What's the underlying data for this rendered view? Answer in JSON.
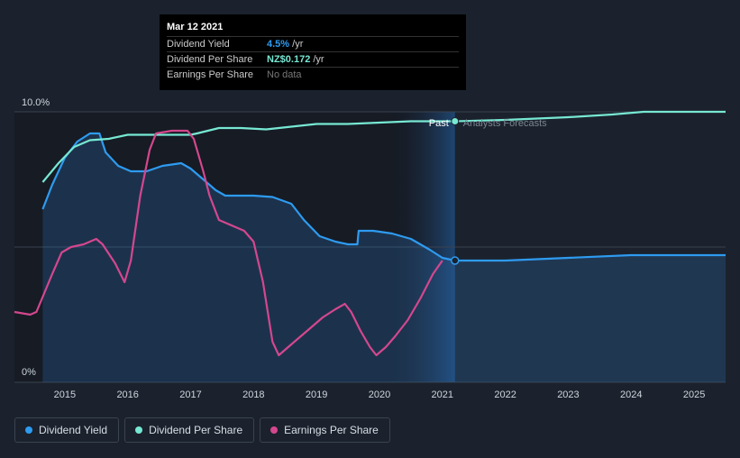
{
  "tooltip": {
    "date": "Mar 12 2021",
    "rows": [
      {
        "label": "Dividend Yield",
        "value": "4.5%",
        "unit": " /yr"
      },
      {
        "label": "Dividend Per Share",
        "value": "NZ$0.172",
        "unit": " /yr"
      },
      {
        "label": "Earnings Per Share",
        "value": "No data",
        "unit": ""
      }
    ]
  },
  "colors": {
    "background": "#1b222d",
    "past_region": "#161b24",
    "dividend_yield": "#2e9bf0",
    "dividend_per_share": "#77e8d3",
    "earnings_per_share": "#d4478e"
  },
  "legend": [
    {
      "label": "Dividend Yield",
      "color": "#2e9bf0"
    },
    {
      "label": "Dividend Per Share",
      "color": "#77e8d3"
    },
    {
      "label": "Earnings Per Share",
      "color": "#d4478e"
    }
  ],
  "chart_data": {
    "type": "line",
    "title": "",
    "xlabel": "",
    "ylabel": "",
    "xlim": [
      2014.2,
      2025.5
    ],
    "ylim": [
      0,
      10
    ],
    "y_tick_labels": [
      {
        "value": 10,
        "label": "10.0%"
      },
      {
        "value": 0,
        "label": "0%"
      }
    ],
    "gridlines": [
      10,
      5
    ],
    "x_ticks": [
      2015,
      2016,
      2017,
      2018,
      2019,
      2020,
      2021,
      2022,
      2023,
      2024,
      2025
    ],
    "x_tick_labels": [
      "2015",
      "2016",
      "2017",
      "2018",
      "2019",
      "2020",
      "2021",
      "2022",
      "2023",
      "2024",
      "2025"
    ],
    "divider_x": 2021.2,
    "divider_labels": {
      "past": "Past",
      "forecast": "Analysts Forecasts"
    },
    "series": [
      {
        "name": "Dividend Yield",
        "color": "#2e9bf0",
        "filled": true,
        "points": [
          [
            2014.65,
            6.4
          ],
          [
            2014.8,
            7.3
          ],
          [
            2015.0,
            8.3
          ],
          [
            2015.2,
            8.9
          ],
          [
            2015.4,
            9.2
          ],
          [
            2015.55,
            9.2
          ],
          [
            2015.65,
            8.5
          ],
          [
            2015.85,
            8.0
          ],
          [
            2016.05,
            7.8
          ],
          [
            2016.3,
            7.8
          ],
          [
            2016.55,
            8.0
          ],
          [
            2016.85,
            8.1
          ],
          [
            2017.0,
            7.9
          ],
          [
            2017.2,
            7.5
          ],
          [
            2017.4,
            7.1
          ],
          [
            2017.55,
            6.9
          ],
          [
            2017.8,
            6.9
          ],
          [
            2018.0,
            6.9
          ],
          [
            2018.3,
            6.85
          ],
          [
            2018.6,
            6.6
          ],
          [
            2018.8,
            6.0
          ],
          [
            2019.05,
            5.4
          ],
          [
            2019.3,
            5.2
          ],
          [
            2019.5,
            5.1
          ],
          [
            2019.65,
            5.1
          ],
          [
            2019.67,
            5.6
          ],
          [
            2019.9,
            5.6
          ],
          [
            2020.2,
            5.5
          ],
          [
            2020.5,
            5.3
          ],
          [
            2020.8,
            4.9
          ],
          [
            2021.0,
            4.6
          ],
          [
            2021.2,
            4.5
          ],
          [
            2022.0,
            4.5
          ],
          [
            2023.0,
            4.6
          ],
          [
            2024.0,
            4.7
          ],
          [
            2024.5,
            4.7
          ],
          [
            2025.5,
            4.7
          ]
        ]
      },
      {
        "name": "Dividend Per Share",
        "color": "#77e8d3",
        "filled": false,
        "points": [
          [
            2014.65,
            7.4
          ],
          [
            2014.9,
            8.1
          ],
          [
            2015.15,
            8.7
          ],
          [
            2015.4,
            8.95
          ],
          [
            2015.7,
            9.0
          ],
          [
            2016.0,
            9.15
          ],
          [
            2016.4,
            9.15
          ],
          [
            2017.0,
            9.15
          ],
          [
            2017.1,
            9.2
          ],
          [
            2017.45,
            9.4
          ],
          [
            2017.8,
            9.4
          ],
          [
            2018.2,
            9.35
          ],
          [
            2018.6,
            9.45
          ],
          [
            2019.0,
            9.55
          ],
          [
            2019.5,
            9.55
          ],
          [
            2020.0,
            9.6
          ],
          [
            2020.5,
            9.65
          ],
          [
            2021.0,
            9.65
          ],
          [
            2021.2,
            9.65
          ],
          [
            2022.0,
            9.7
          ],
          [
            2023.0,
            9.8
          ],
          [
            2023.7,
            9.9
          ],
          [
            2024.2,
            10.0
          ],
          [
            2024.5,
            10.0
          ],
          [
            2025.5,
            10.0
          ]
        ]
      },
      {
        "name": "Earnings Per Share",
        "color": "#d4478e",
        "filled": false,
        "points": [
          [
            2014.2,
            2.6
          ],
          [
            2014.45,
            2.5
          ],
          [
            2014.55,
            2.6
          ],
          [
            2014.8,
            4.0
          ],
          [
            2014.95,
            4.8
          ],
          [
            2015.1,
            5.0
          ],
          [
            2015.3,
            5.1
          ],
          [
            2015.5,
            5.3
          ],
          [
            2015.6,
            5.1
          ],
          [
            2015.8,
            4.4
          ],
          [
            2015.95,
            3.7
          ],
          [
            2016.05,
            4.5
          ],
          [
            2016.2,
            6.9
          ],
          [
            2016.35,
            8.6
          ],
          [
            2016.45,
            9.2
          ],
          [
            2016.7,
            9.3
          ],
          [
            2016.95,
            9.3
          ],
          [
            2017.05,
            9.0
          ],
          [
            2017.2,
            7.8
          ],
          [
            2017.3,
            6.9
          ],
          [
            2017.45,
            6.0
          ],
          [
            2017.65,
            5.8
          ],
          [
            2017.85,
            5.6
          ],
          [
            2018.0,
            5.2
          ],
          [
            2018.15,
            3.7
          ],
          [
            2018.3,
            1.5
          ],
          [
            2018.4,
            1.0
          ],
          [
            2018.6,
            1.4
          ],
          [
            2018.9,
            2.0
          ],
          [
            2019.1,
            2.4
          ],
          [
            2019.3,
            2.7
          ],
          [
            2019.45,
            2.9
          ],
          [
            2019.55,
            2.6
          ],
          [
            2019.7,
            1.9
          ],
          [
            2019.85,
            1.3
          ],
          [
            2019.95,
            1.0
          ],
          [
            2020.1,
            1.3
          ],
          [
            2020.25,
            1.7
          ],
          [
            2020.45,
            2.3
          ],
          [
            2020.65,
            3.1
          ],
          [
            2020.85,
            4.0
          ],
          [
            2021.0,
            4.5
          ]
        ]
      }
    ]
  }
}
